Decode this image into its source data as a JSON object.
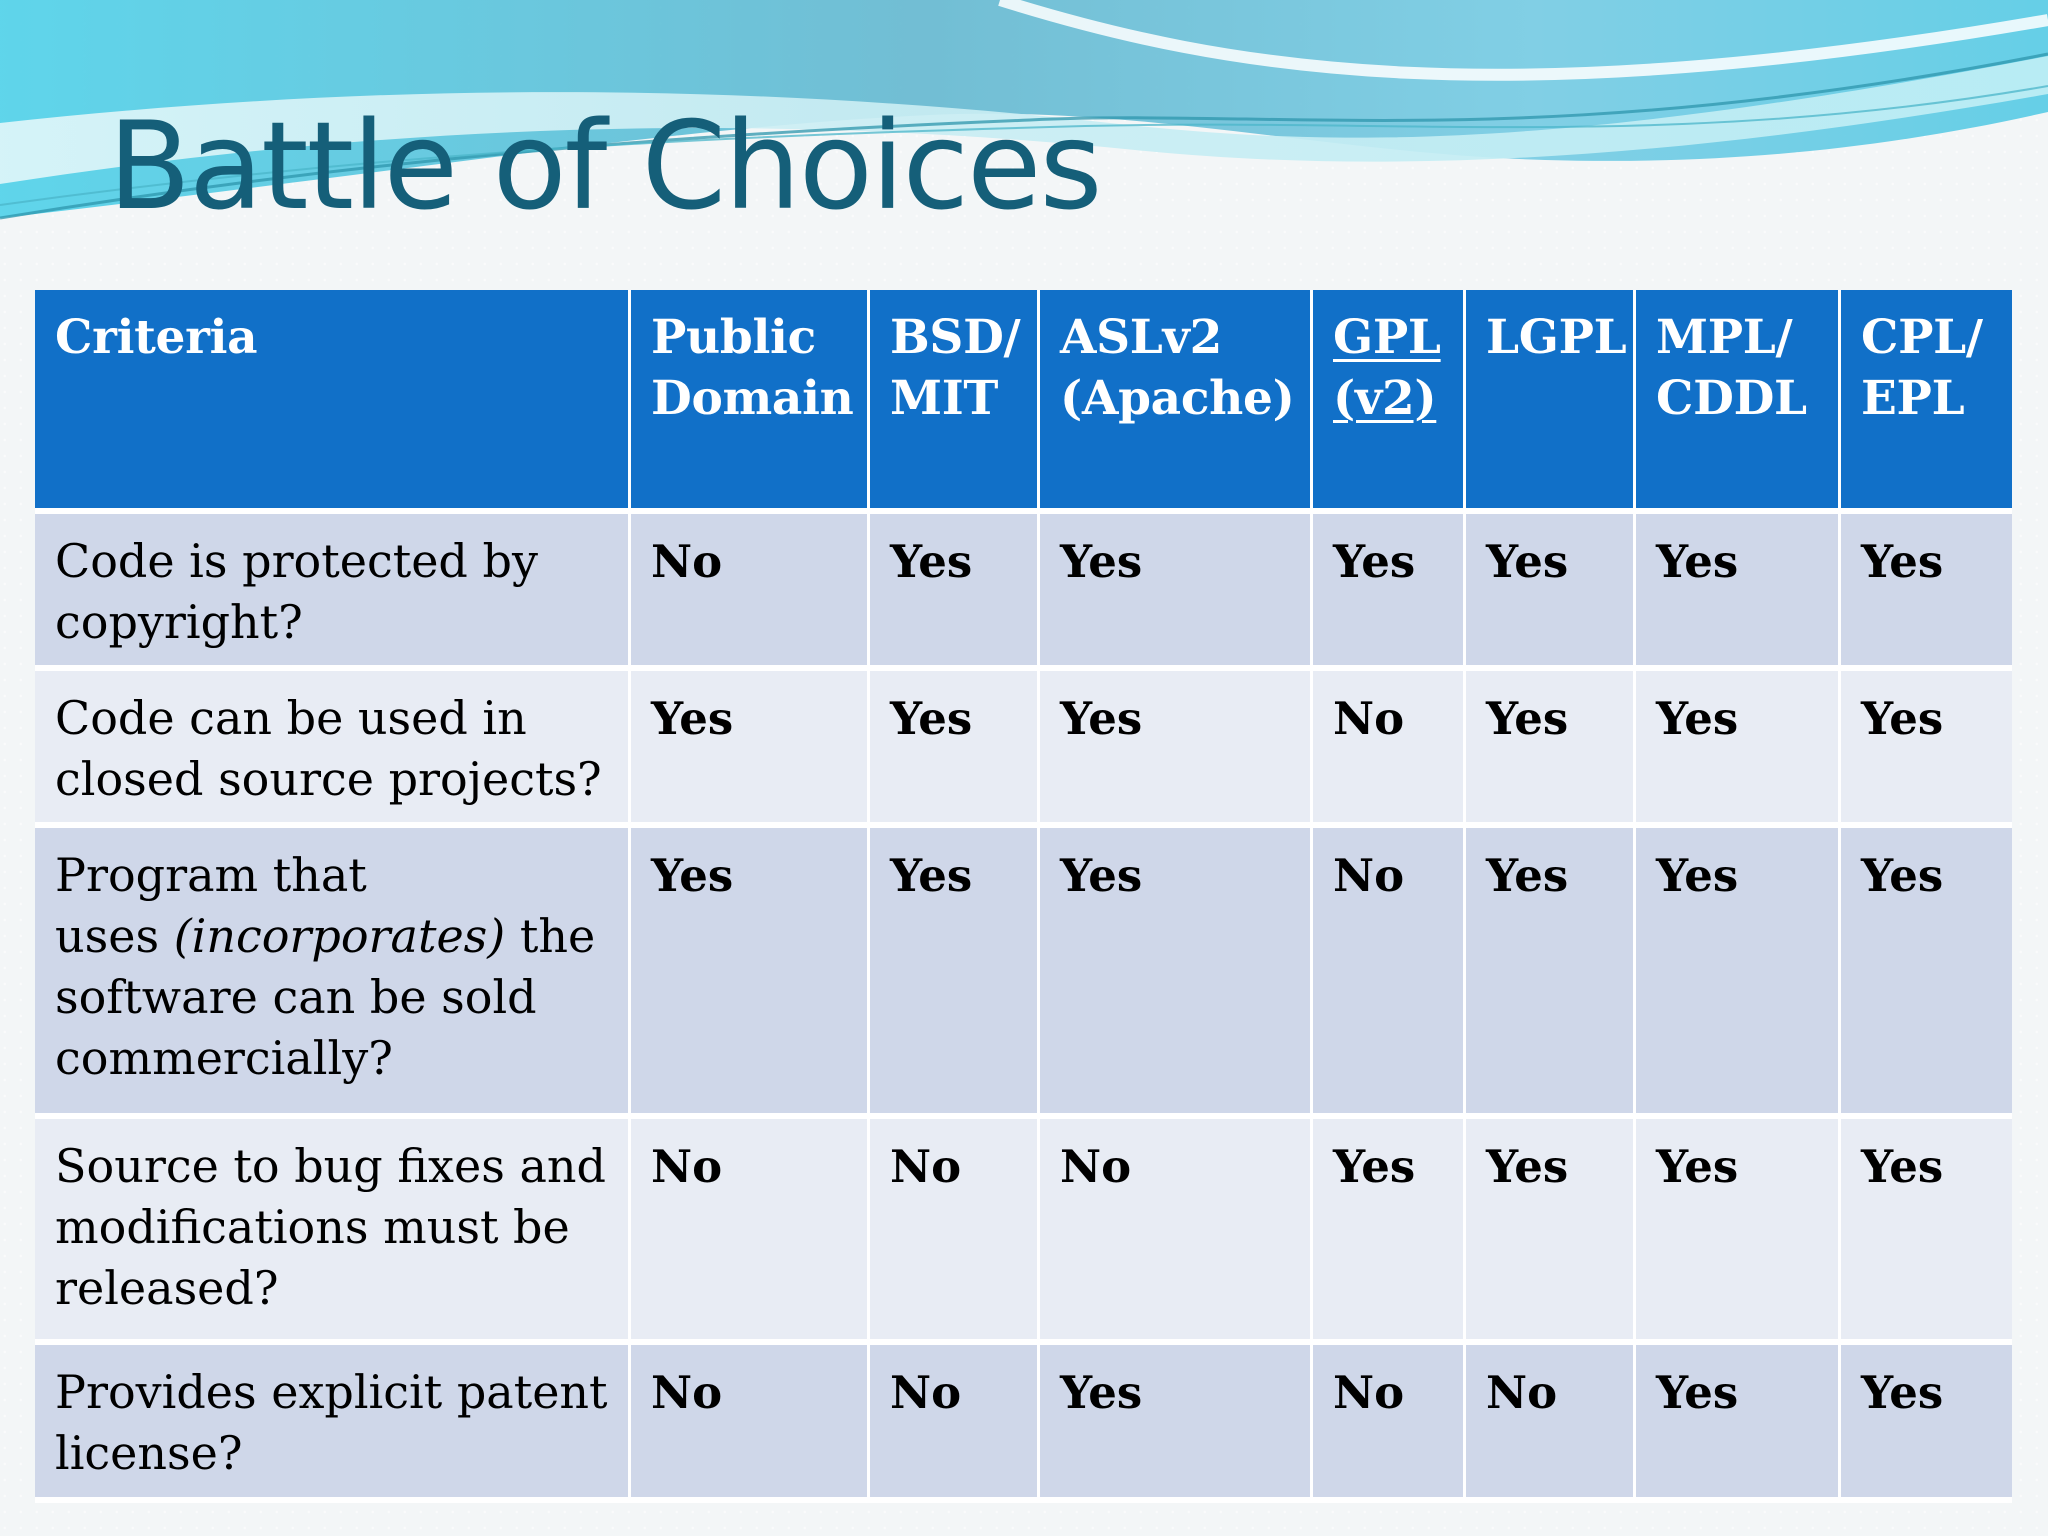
{
  "slide": {
    "title": "Battle of Choices",
    "colors": {
      "title": "#155f79",
      "header_bg": "#1170c8",
      "row_dark_bg": "#cfd7e9",
      "row_light_bg": "#e8ecf4",
      "wave_cyan": "#72d6e6",
      "wave_blue": "#66aeca"
    }
  },
  "table": {
    "columns": [
      "Criteria",
      "Public Domain",
      "BSD/ MIT",
      "ASLv2 (Apache)",
      "GPL (v2)",
      "LGPL",
      "MPL/ CDDL",
      "CPL/ EPL"
    ],
    "header_lines": [
      [
        "Criteria"
      ],
      [
        "Public",
        "Domain"
      ],
      [
        "BSD/",
        "MIT"
      ],
      [
        "ASLv2",
        "(Apache)"
      ],
      [
        "GPL",
        "(v2)"
      ],
      [
        "LGPL"
      ],
      [
        "MPL/",
        "CDDL"
      ],
      [
        "CPL/",
        "EPL"
      ]
    ],
    "rows": [
      {
        "criteria_lines": [
          "Code is protected by",
          "copyright?"
        ],
        "values": [
          "No",
          "Yes",
          "Yes",
          "Yes",
          "Yes",
          "Yes",
          "Yes"
        ]
      },
      {
        "criteria_lines": [
          "Code can be used in",
          "closed source projects?"
        ],
        "values": [
          "Yes",
          "Yes",
          "Yes",
          "No",
          "Yes",
          "Yes",
          "Yes"
        ]
      },
      {
        "criteria_parts": {
          "line1": "Program that",
          "line2_prefix": "uses ",
          "line2_italic": "(incorporates)",
          "line2_suffix": " the",
          "line3": "software can be sold",
          "line4": "commercially?"
        },
        "values": [
          "Yes",
          "Yes",
          "Yes",
          "No",
          "Yes",
          "Yes",
          "Yes"
        ]
      },
      {
        "criteria_lines": [
          "Source to bug fixes and",
          "modifications must be",
          "released?"
        ],
        "values": [
          "No",
          "No",
          "No",
          "Yes",
          "Yes",
          "Yes",
          "Yes"
        ]
      },
      {
        "criteria_lines": [
          "Provides explicit patent",
          "license?"
        ],
        "values": [
          "No",
          "No",
          "Yes",
          "No",
          "No",
          "Yes",
          "Yes"
        ]
      }
    ]
  }
}
